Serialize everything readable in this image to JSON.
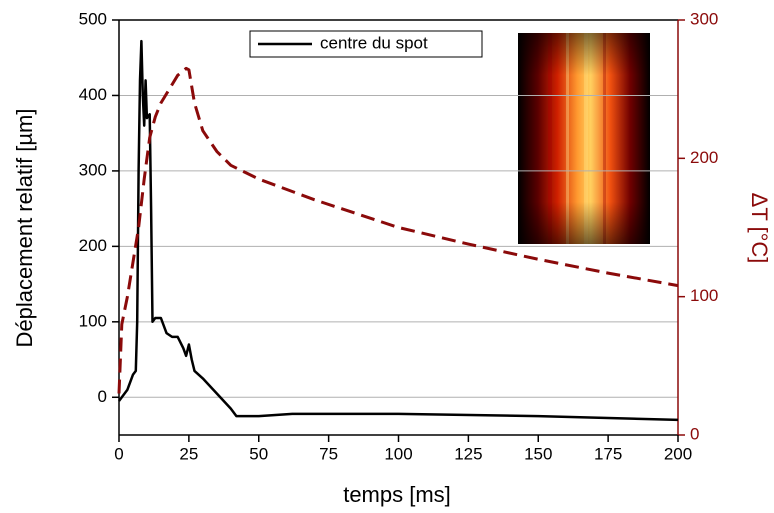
{
  "chart_data": {
    "type": "line",
    "x_label": "temps [ms]",
    "y_label": "Déplacement relatif [µm]",
    "y2_label": "ΔT [°C]",
    "xlim": [
      0,
      200
    ],
    "xticks": [
      0,
      25,
      50,
      75,
      100,
      125,
      150,
      175,
      200
    ],
    "ylim": [
      -50,
      500
    ],
    "yticks": [
      0,
      100,
      200,
      300,
      400,
      500
    ],
    "y2lim": [
      0,
      300
    ],
    "y2ticks": [
      0,
      100,
      200,
      300
    ],
    "grid": true,
    "legend": "top",
    "series": [
      {
        "name": "centre du spot",
        "color": "#000000",
        "dash": false,
        "x": [
          0,
          1,
          3,
          5,
          6,
          6.5,
          7,
          7.5,
          8,
          8.5,
          9,
          9.5,
          10,
          11,
          11.5,
          12,
          13,
          15,
          17,
          19,
          21,
          23,
          24,
          25,
          26,
          27,
          30,
          35,
          40,
          42,
          45,
          50,
          62,
          100,
          150,
          200
        ],
        "values": [
          -5,
          0,
          10,
          30,
          35,
          100,
          300,
          420,
          472,
          400,
          360,
          420,
          370,
          375,
          250,
          100,
          105,
          105,
          85,
          80,
          80,
          65,
          55,
          70,
          50,
          35,
          25,
          5,
          -15,
          -25,
          -25,
          -25,
          -22,
          -22,
          -25,
          -30
        ]
      },
      {
        "color": "#8b0a0a",
        "dash": true,
        "axis": "y2",
        "x": [
          0,
          1,
          3,
          5,
          7,
          9,
          11,
          13,
          15,
          18,
          21,
          24,
          25,
          27,
          30,
          35,
          40,
          50,
          70,
          100,
          125,
          150,
          175,
          200
        ],
        "values": [
          30,
          80,
          100,
          125,
          150,
          185,
          215,
          230,
          240,
          250,
          260,
          265,
          264,
          240,
          220,
          205,
          195,
          185,
          170,
          150,
          138,
          127,
          117,
          108
        ]
      }
    ]
  }
}
